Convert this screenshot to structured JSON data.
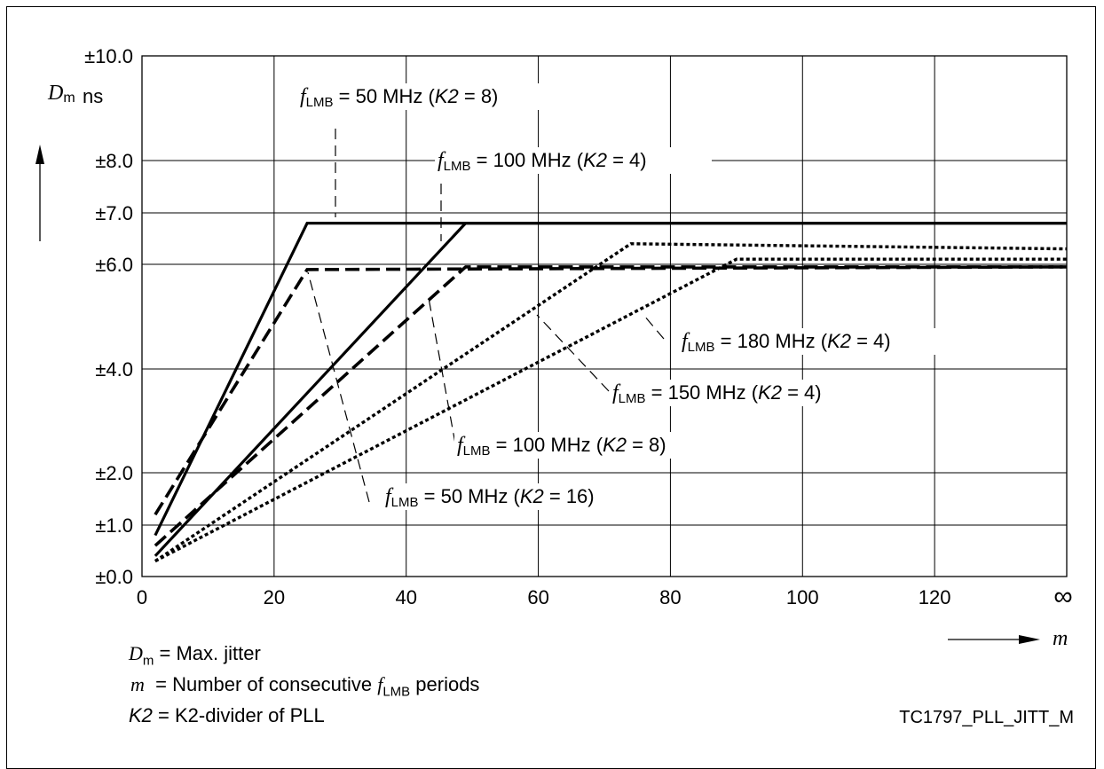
{
  "chart_data": {
    "type": "line",
    "x_ticks": [
      "0",
      "20",
      "40",
      "60",
      "80",
      "100",
      "120",
      "∞"
    ],
    "y_ticks": [
      "±0.0",
      "±1.0",
      "±2.0",
      "±4.0",
      "±6.0",
      "±7.0",
      "±8.0",
      "±10.0"
    ],
    "y_tick_values": [
      0,
      1,
      2,
      4,
      6,
      7,
      8,
      10
    ],
    "xlim": [
      0,
      140
    ],
    "ylim": [
      0,
      10
    ],
    "ylabel_var": "D",
    "ylabel_sub": "m",
    "y_unit": "ns",
    "xlabel_var": "m",
    "grid": true,
    "series": [
      {
        "name": "fLMB = 50 MHz (K2 = 8)",
        "style": "solid",
        "points": [
          [
            2,
            0.8
          ],
          [
            25,
            6.8
          ],
          [
            140,
            6.8
          ]
        ]
      },
      {
        "name": "fLMB = 100 MHz (K2 = 4)",
        "style": "solid",
        "points": [
          [
            2,
            0.4
          ],
          [
            49,
            6.8
          ],
          [
            140,
            6.8
          ]
        ]
      },
      {
        "name": "fLMB = 50 MHz (K2 = 16)",
        "style": "dashed",
        "points": [
          [
            2,
            1.2
          ],
          [
            25,
            5.9
          ],
          [
            140,
            5.95
          ]
        ]
      },
      {
        "name": "fLMB = 100 MHz (K2 = 8)",
        "style": "dashed",
        "points": [
          [
            2,
            0.6
          ],
          [
            49,
            5.95
          ],
          [
            140,
            5.95
          ]
        ]
      },
      {
        "name": "fLMB = 150 MHz (K2 = 4)",
        "style": "dotted",
        "points": [
          [
            2,
            0.3
          ],
          [
            74,
            6.4
          ],
          [
            140,
            6.3
          ]
        ]
      },
      {
        "name": "fLMB = 180 MHz (K2 = 4)",
        "style": "dotted",
        "points": [
          [
            2,
            0.3
          ],
          [
            90,
            6.1
          ],
          [
            140,
            6.1
          ]
        ]
      }
    ],
    "annotations": [
      {
        "prefix": "f",
        "sub": "LMB",
        "text": " = 50 MHz (",
        "k": "K2",
        "tail": " = 8)"
      },
      {
        "prefix": "f",
        "sub": "LMB",
        "text": " = 100 MHz (",
        "k": "K2",
        "tail": " = 4)"
      },
      {
        "prefix": "f",
        "sub": "LMB",
        "text": " = 180 MHz (",
        "k": "K2",
        "tail": " = 4)"
      },
      {
        "prefix": "f",
        "sub": "LMB",
        "text": " = 150 MHz (",
        "k": "K2",
        "tail": " = 4)"
      },
      {
        "prefix": "f",
        "sub": "LMB",
        "text": " = 100 MHz (",
        "k": "K2",
        "tail": " = 8)"
      },
      {
        "prefix": "f",
        "sub": "LMB",
        "text": " = 50 MHz (",
        "k": "K2",
        "tail": " = 16)"
      }
    ]
  },
  "legend": {
    "line1": {
      "var": "D",
      "sub": "m",
      "text": " = Max. jitter"
    },
    "line2": {
      "var": "m",
      "text_a": "  = Number of consecutive ",
      "f": "f",
      "sub": "LMB",
      "text_b": " periods"
    },
    "line3": {
      "var": "K2",
      "text": " = K2-divider of PLL"
    }
  },
  "figure_id": "TC1797_PLL_JITT_M"
}
